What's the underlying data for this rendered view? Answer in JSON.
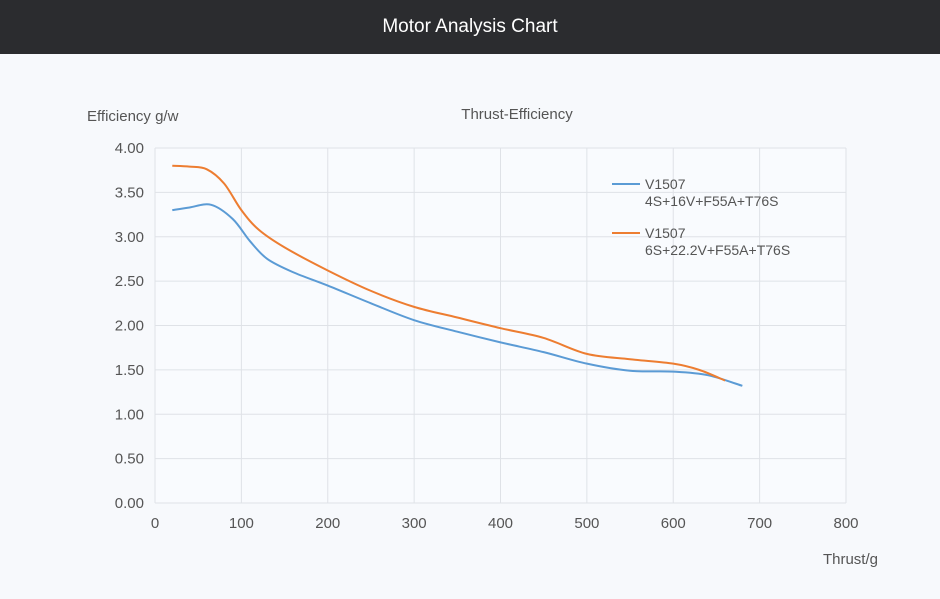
{
  "header": {
    "title": "Motor Analysis Chart"
  },
  "chart_data": {
    "type": "line",
    "title": "Thrust-Efficiency",
    "xlabel": "Thrust/g",
    "ylabel": "Efficiency g/w",
    "xlim": [
      0,
      800
    ],
    "ylim": [
      0,
      4
    ],
    "xticks": [
      "0",
      "100",
      "200",
      "300",
      "400",
      "500",
      "600",
      "700",
      "800"
    ],
    "yticks": [
      "0.00",
      "0.50",
      "1.00",
      "1.50",
      "2.00",
      "2.50",
      "3.00",
      "3.50",
      "4.00"
    ],
    "grid": true,
    "legend_position": "top-right",
    "series": [
      {
        "name_line1": "V1507",
        "name_line2": "4S+16V+F55A+T76S",
        "color": "#5b9bd5",
        "x": [
          20,
          40,
          65,
          90,
          110,
          130,
          160,
          200,
          250,
          300,
          350,
          400,
          450,
          500,
          550,
          600,
          640,
          680
        ],
        "y": [
          3.3,
          3.33,
          3.36,
          3.2,
          2.95,
          2.75,
          2.6,
          2.45,
          2.25,
          2.06,
          1.93,
          1.81,
          1.7,
          1.57,
          1.49,
          1.48,
          1.44,
          1.32
        ]
      },
      {
        "name_line1": "V1507",
        "name_line2": "6S+22.2V+F55A+T76S",
        "color": "#ed7d31",
        "x": [
          20,
          40,
          60,
          80,
          100,
          120,
          150,
          200,
          250,
          300,
          350,
          400,
          450,
          500,
          550,
          600,
          630,
          660
        ],
        "y": [
          3.8,
          3.79,
          3.76,
          3.6,
          3.3,
          3.08,
          2.88,
          2.62,
          2.39,
          2.21,
          2.09,
          1.97,
          1.86,
          1.68,
          1.62,
          1.57,
          1.5,
          1.38
        ]
      }
    ]
  }
}
